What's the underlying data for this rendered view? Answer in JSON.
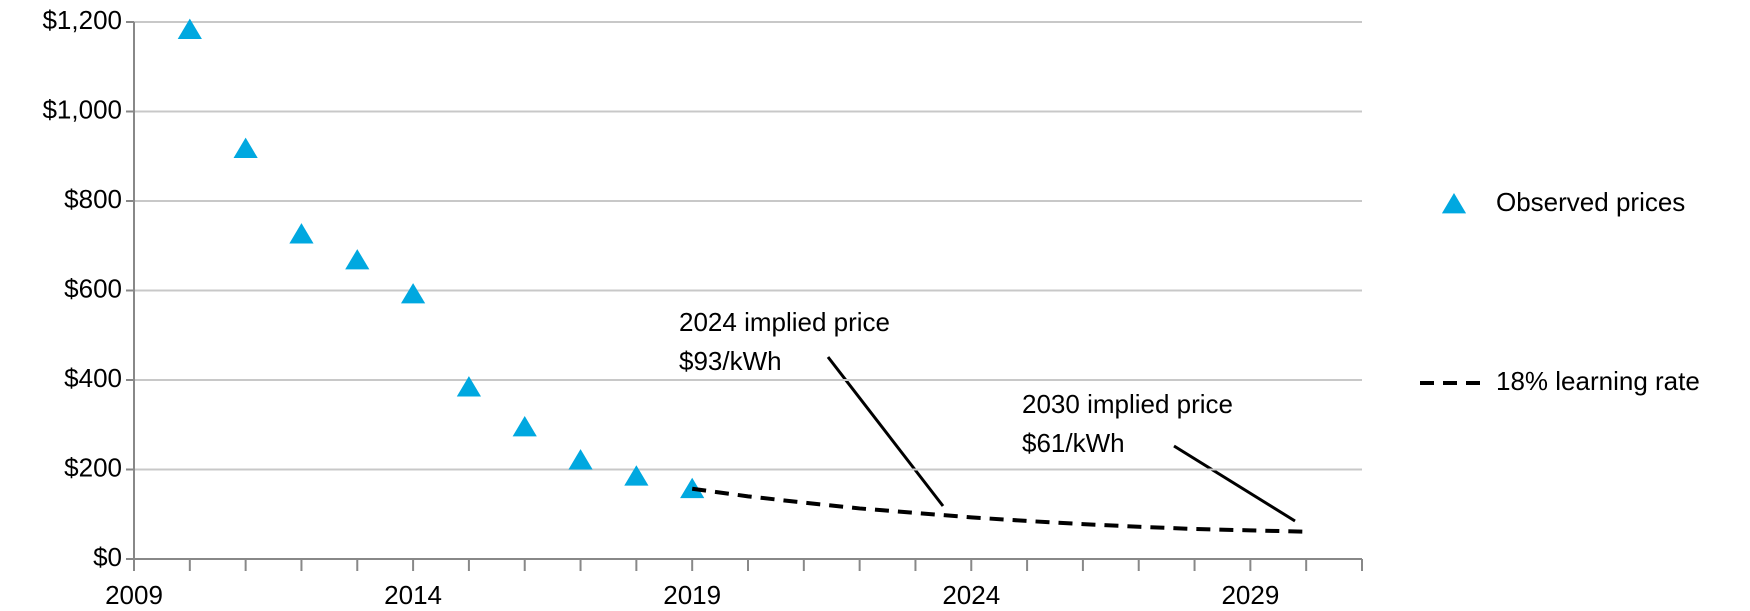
{
  "chart_data": {
    "type": "scatter",
    "series": [
      {
        "name": "Observed prices",
        "mode": "markers",
        "marker": "triangle",
        "color": "#00a8e0",
        "x": [
          2010,
          2011,
          2012,
          2013,
          2014,
          2015,
          2016,
          2017,
          2018,
          2019
        ],
        "values": [
          1183,
          917,
          726,
          668,
          592,
          384,
          295,
          221,
          185,
          157
        ]
      },
      {
        "name": "18% learning rate",
        "mode": "lines",
        "dash": "dashed",
        "color": "#000000",
        "x": [
          2019,
          2020,
          2021,
          2022,
          2023,
          2024,
          2025,
          2026,
          2027,
          2028,
          2029,
          2030
        ],
        "values": [
          157,
          140,
          126,
          113,
          103,
          93,
          85,
          78,
          72,
          67,
          64,
          61
        ]
      }
    ],
    "xlim": [
      2009,
      2031
    ],
    "xticks": [
      2009,
      2014,
      2019,
      2024,
      2029
    ],
    "xminorticks": [
      2010,
      2011,
      2012,
      2013,
      2015,
      2016,
      2017,
      2018,
      2020,
      2021,
      2022,
      2023,
      2025,
      2026,
      2027,
      2028,
      2030,
      2031
    ],
    "ylim": [
      0,
      1200
    ],
    "yticks": [
      {
        "value": 0,
        "label": "$0"
      },
      {
        "value": 200,
        "label": "$200"
      },
      {
        "value": 400,
        "label": "$400"
      },
      {
        "value": 600,
        "label": "$600"
      },
      {
        "value": 800,
        "label": "$800"
      },
      {
        "value": 1000,
        "label": "$1,000"
      },
      {
        "value": 1200,
        "label": "$1,200"
      }
    ],
    "grid": true,
    "legend": "right",
    "annotations": [
      {
        "lines": [
          "2024 implied price",
          "$93/kWh"
        ]
      },
      {
        "lines": [
          "2030 implied price",
          "$61/kWh"
        ]
      }
    ]
  }
}
